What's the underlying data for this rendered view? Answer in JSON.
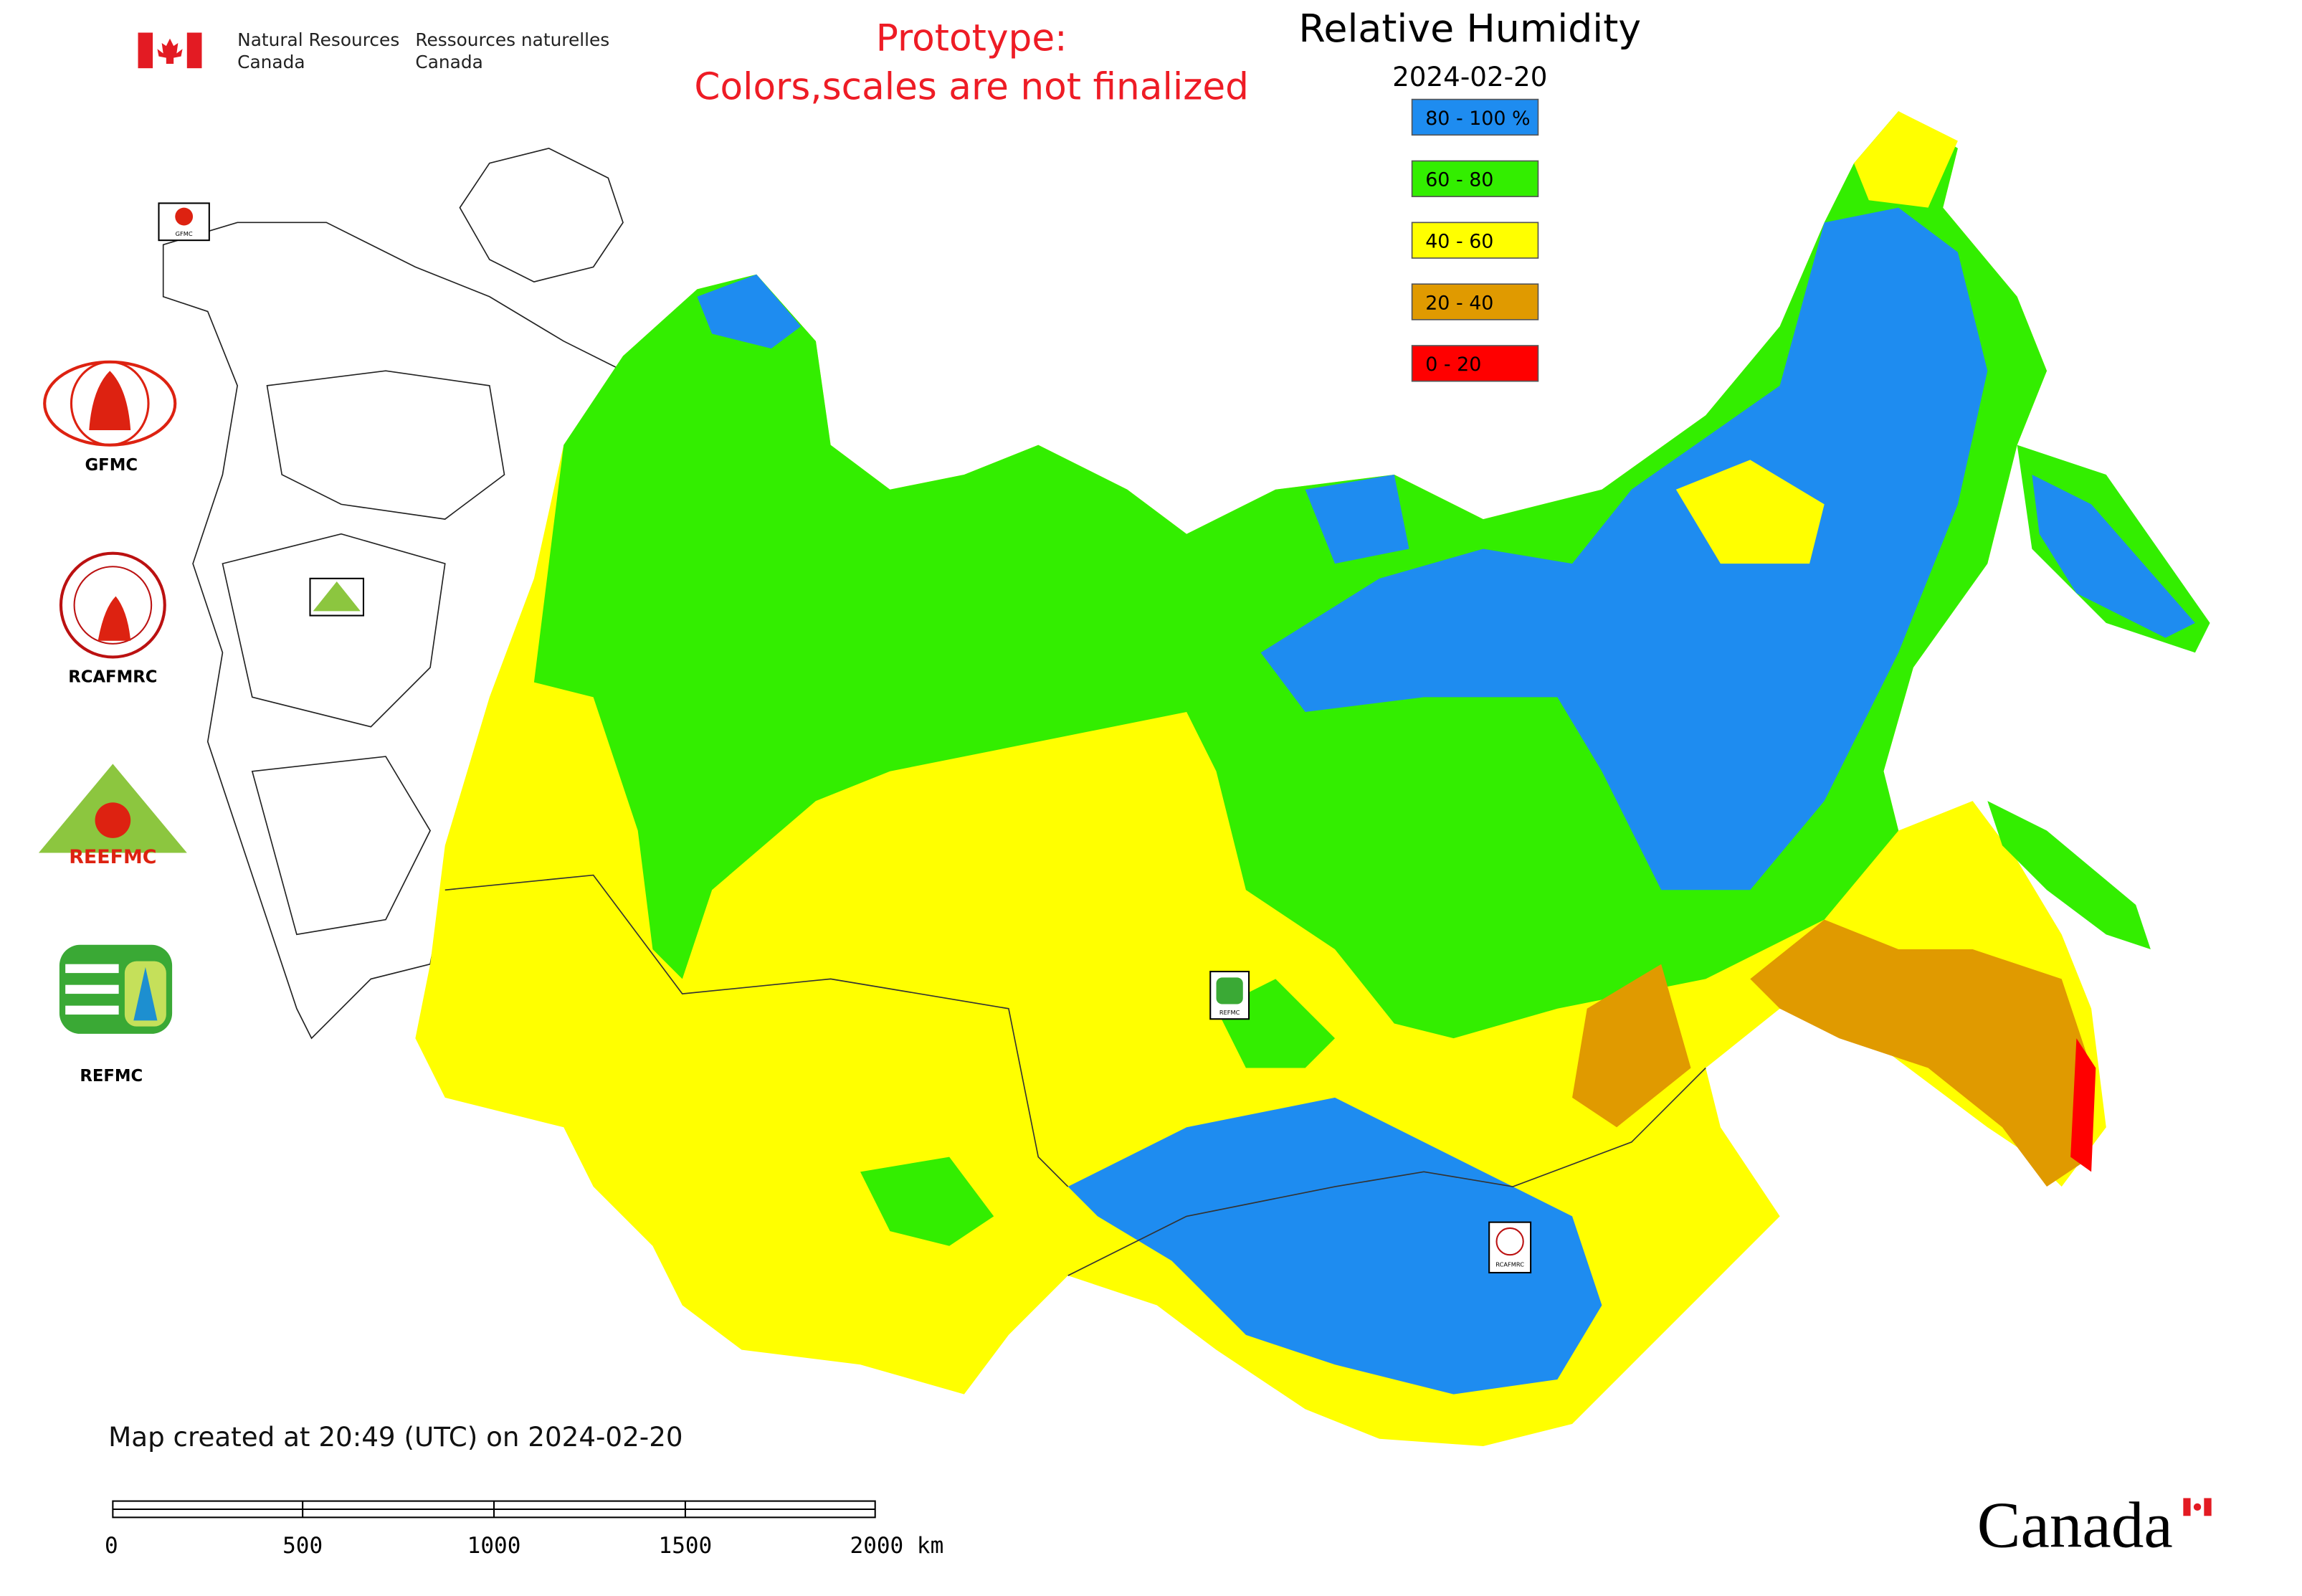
{
  "header": {
    "department_en": [
      "Natural Resources",
      "Canada"
    ],
    "department_fr": [
      "Ressources naturelles",
      "Canada"
    ]
  },
  "notice": [
    "Prototype:",
    "Colors,scales are not finalized"
  ],
  "title": "Relative Humidity",
  "date": "2024-02-20",
  "legend": {
    "items": [
      {
        "label": "80 - 100 %",
        "color": "#1e8cf0"
      },
      {
        "label": "60 - 80",
        "color": "#33ee00"
      },
      {
        "label": "40 - 60",
        "color": "#ffff00"
      },
      {
        "label": "20 - 40",
        "color": "#e09a00"
      },
      {
        "label": "0 - 20",
        "color": "#ff0000"
      }
    ]
  },
  "logos": [
    "GFMC",
    "RCAFMRC",
    "REEFMC",
    "REFMC"
  ],
  "footer": "Map created at 20:49 (UTC) on 2024-02-20",
  "scale_bar": [
    "0",
    "500",
    "1000",
    "1500",
    "2000 km"
  ],
  "wordmark": "Canada"
}
